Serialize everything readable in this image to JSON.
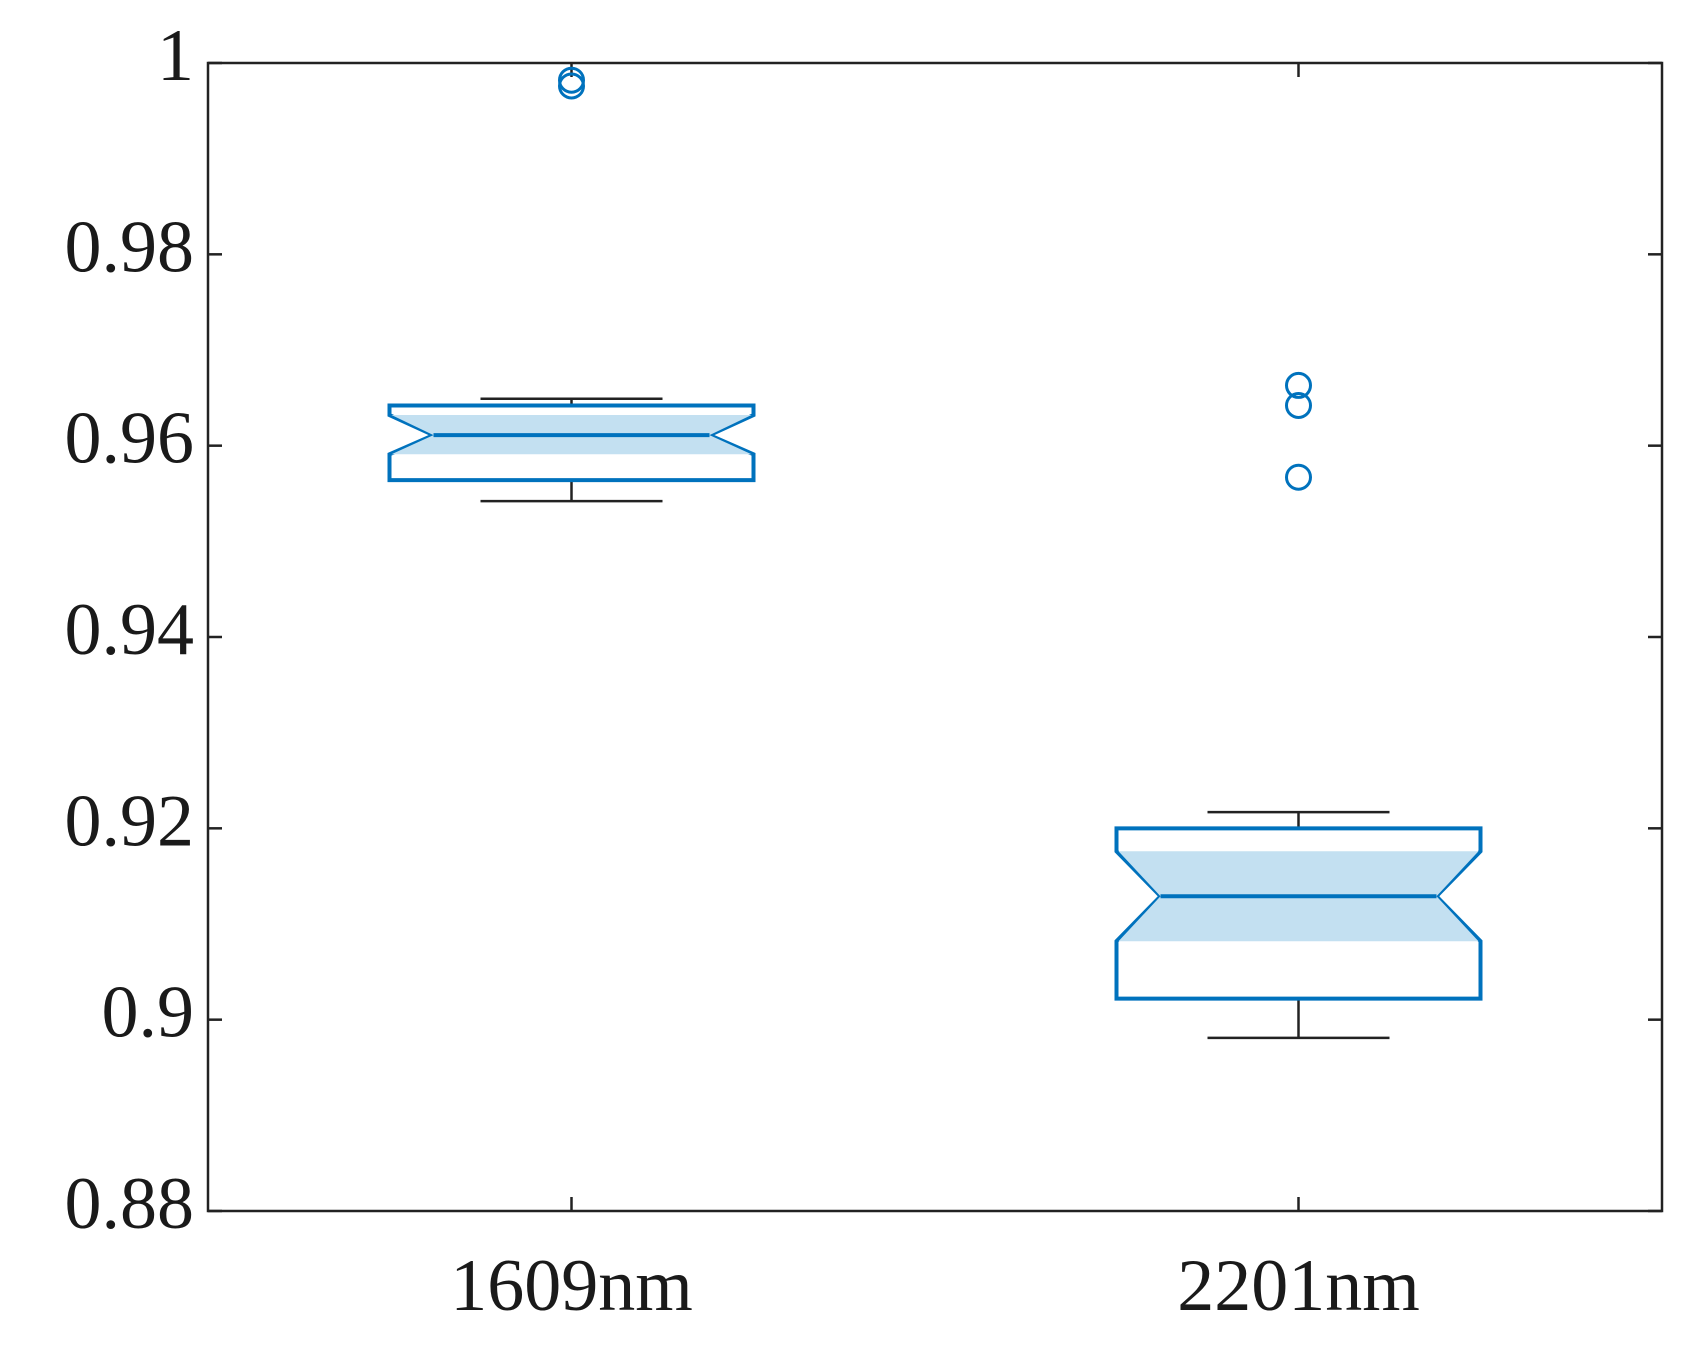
{
  "chart_data": {
    "type": "box",
    "color": "#0072bd",
    "notch_color": "#c3e0f1",
    "categories": [
      "1609nm",
      "2201nm"
    ],
    "series": [
      {
        "whisker_low": 0.9542,
        "q1": 0.9564,
        "notch_low": 0.9591,
        "median": 0.9611,
        "notch_high": 0.9632,
        "q3": 0.9642,
        "whisker_high": 0.9649,
        "outliers": [
          0.9982,
          0.9976
        ]
      },
      {
        "whisker_low": 0.8981,
        "q1": 0.9022,
        "notch_low": 0.9082,
        "median": 0.9129,
        "notch_high": 0.9176,
        "q3": 0.92,
        "whisker_high": 0.9217,
        "outliers": [
          0.9663,
          0.9642,
          0.9567
        ]
      }
    ],
    "ylim": [
      0.88,
      1
    ],
    "yticks": [
      0.88,
      0.9,
      0.92,
      0.94,
      0.96,
      0.98,
      1
    ]
  }
}
